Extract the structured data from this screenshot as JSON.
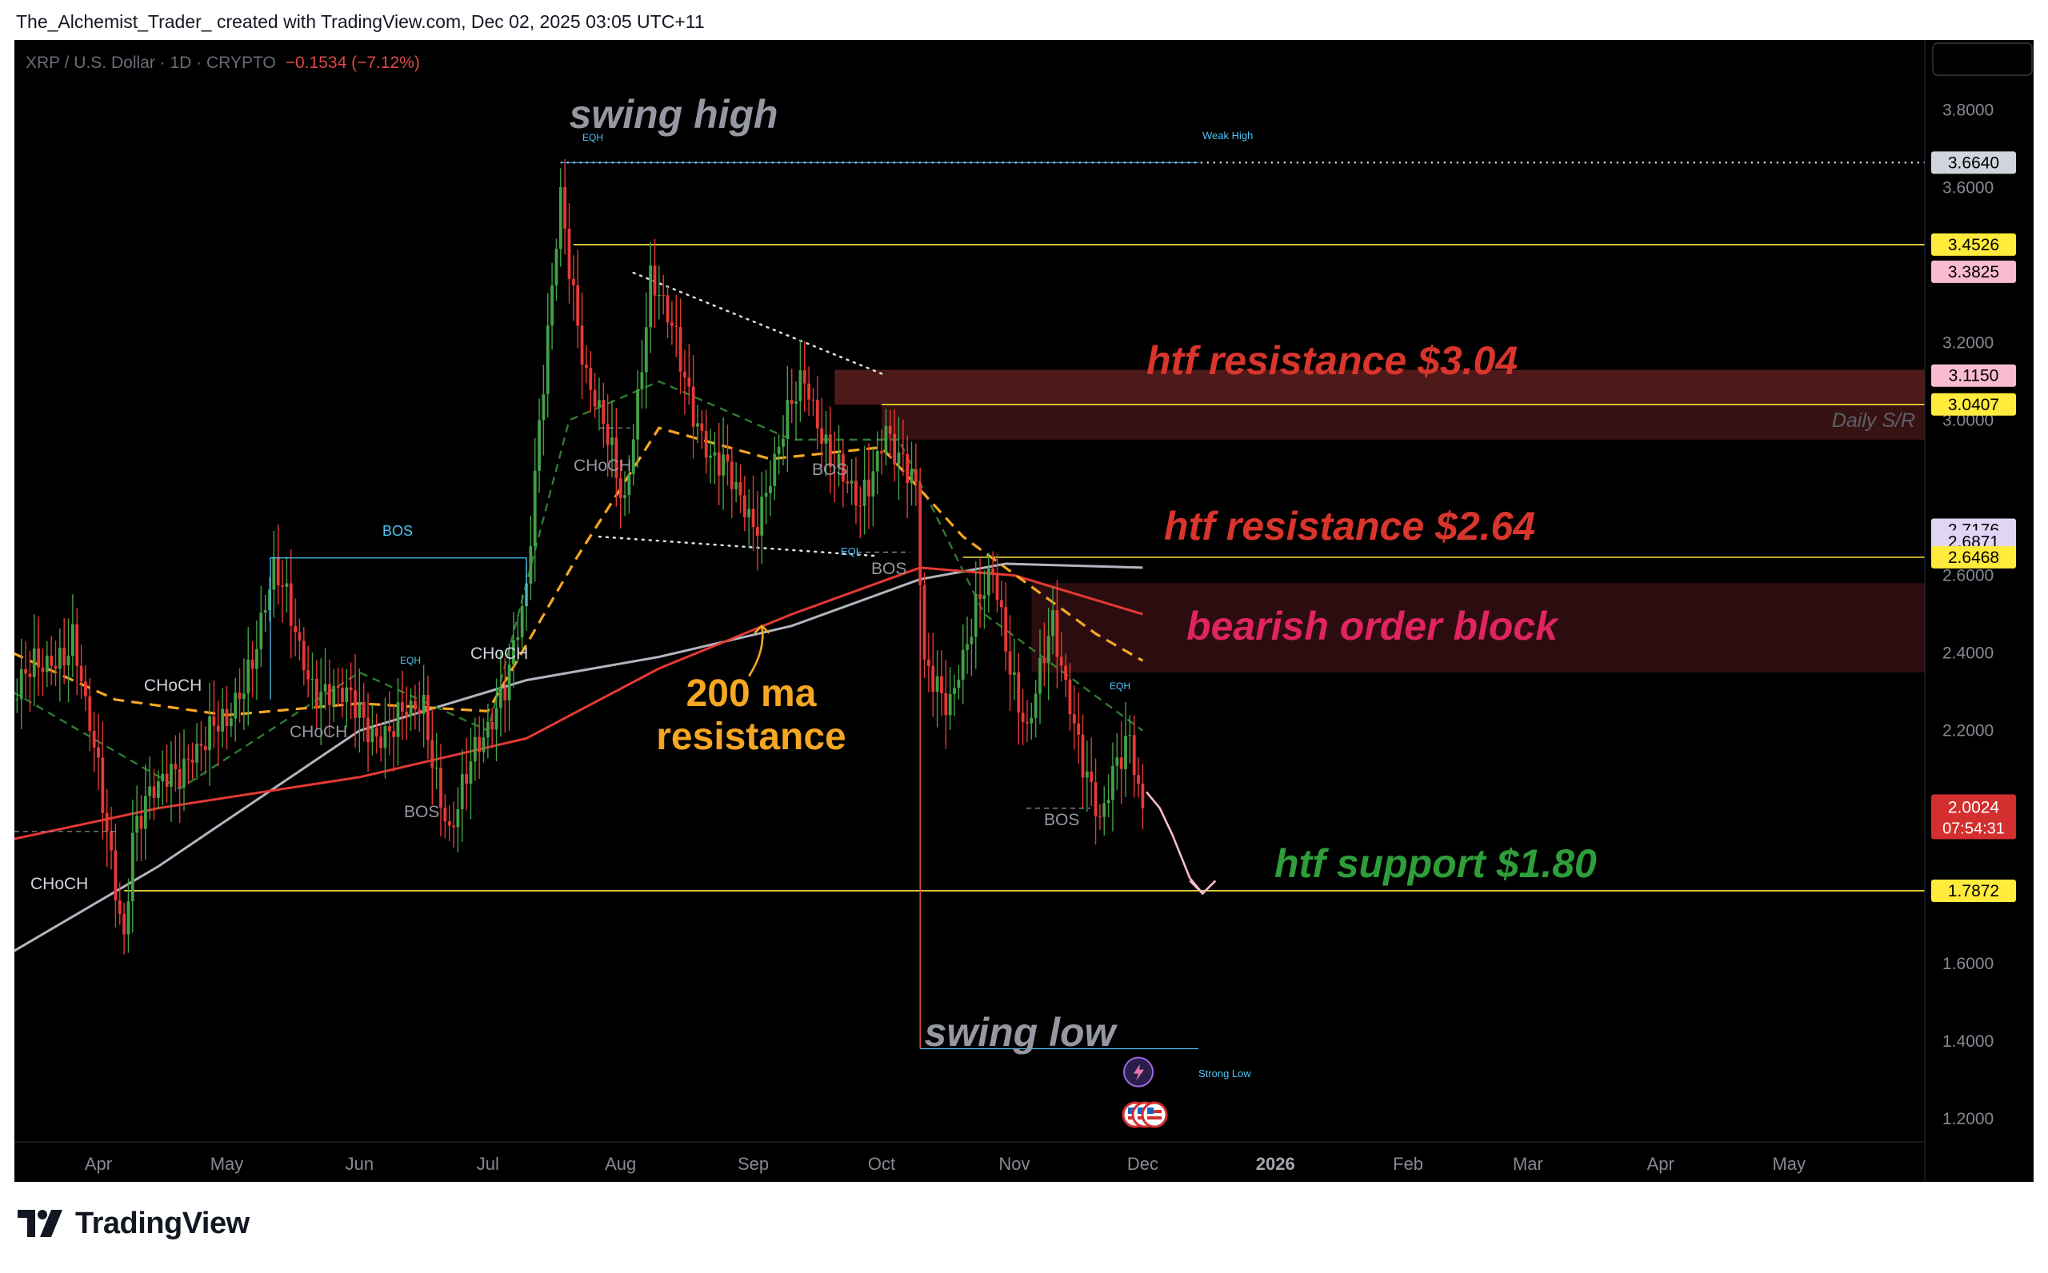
{
  "attribution": "The_Alchemist_Trader_ created with TradingView.com, Dec 02, 2025 03:05 UTC+11",
  "brand": "TradingView",
  "colors": {
    "up": "#26a69a",
    "up_bright": "#4caf50",
    "down": "#ef5350",
    "ma200": "#e53935",
    "ma_gray": "#b2b5be",
    "ma_orange": "#f5a623",
    "level_yellow": "#ffeb3b",
    "resistance_text": "#d8352c",
    "ob_text": "#e0245e",
    "support_text": "#2e9e3a",
    "annot_gray": "#9598a1"
  },
  "chart_data": {
    "type": "candlestick",
    "header": {
      "symbol": "XRP / U.S. Dollar · 1D · CRYPTO",
      "change": "−0.1534 (−7.12%)"
    },
    "currency": "USD",
    "x_ticks": [
      "Apr",
      "May",
      "Jun",
      "Jul",
      "Aug",
      "Sep",
      "Oct",
      "Nov",
      "Dec",
      "2026",
      "Feb",
      "Mar",
      "Apr",
      "May"
    ],
    "y_ticks": [
      "3.8000",
      "3.6000",
      "3.2000",
      "3.0000",
      "2.6000",
      "2.4000",
      "2.2000",
      "1.6000",
      "1.4000",
      "1.2000"
    ],
    "ylim": [
      1.14,
      3.98
    ],
    "price_labels": [
      {
        "value": 3.664,
        "text": "3.6640",
        "bg": "#d1d4dc",
        "fg": "#000000"
      },
      {
        "value": 3.4526,
        "text": "3.4526",
        "bg": "#ffeb3b",
        "fg": "#000000"
      },
      {
        "value": 3.3825,
        "text": "3.3825",
        "bg": "#f8bbd0",
        "fg": "#000000"
      },
      {
        "value": 3.115,
        "text": "3.1150",
        "bg": "#f8bbd0",
        "fg": "#000000"
      },
      {
        "value": 3.0407,
        "text": "3.0407",
        "bg": "#ffeb3b",
        "fg": "#000000"
      },
      {
        "value": 2.7176,
        "text": "2.7176",
        "bg": "#e1d5f5",
        "fg": "#000000"
      },
      {
        "value": 2.6871,
        "text": "2.6871",
        "bg": "#e1d5f5",
        "fg": "#000000"
      },
      {
        "value": 2.6468,
        "text": "2.6468",
        "bg": "#ffeb3b",
        "fg": "#000000"
      },
      {
        "value": 1.7872,
        "text": "1.7872",
        "bg": "#ffeb3b",
        "fg": "#000000"
      }
    ],
    "current_price": {
      "value": 2.0024,
      "text": "2.0024",
      "countdown": "07:54:31"
    },
    "levels": [
      {
        "value": 3.4526,
        "x_from": "2025-07-21"
      },
      {
        "value": 3.0407,
        "x_from": "2025-10-01"
      },
      {
        "value": 2.6468,
        "x_from": "2025-10-20"
      },
      {
        "value": 1.7872,
        "x_from": "2025-04-07"
      }
    ],
    "zones": [
      {
        "from": 3.04,
        "to": 3.13,
        "x_from": "2025-09-20",
        "name": "htf resistance"
      },
      {
        "from": 2.95,
        "to": 3.04,
        "x_from": "2025-10-01",
        "name": "daily s/r"
      },
      {
        "from": 2.35,
        "to": 2.58,
        "x_from": "2025-11-05",
        "name": "bearish order block"
      }
    ],
    "annotations": {
      "swing_high": "swing high",
      "swing_low": "swing low",
      "htf_res_1": "htf resistance $3.04",
      "htf_res_2": "htf resistance $2.64",
      "bearish_ob": "bearish order block",
      "ma_resistance_1": "200 ma",
      "ma_resistance_2": "resistance",
      "htf_support": "htf support $1.80",
      "daily_sr": "Daily S/R",
      "weak_high": "Weak High",
      "strong_low": "Strong Low",
      "eqh": "EQH",
      "eql": "EQL",
      "bos": "BOS",
      "choch": "CHoCH"
    },
    "swing_high": {
      "value": 3.664,
      "x": "2025-07-18"
    },
    "swing_low": {
      "value": 1.38,
      "x": "2025-10-10"
    },
    "anchors": [
      {
        "date": "2025-03-12",
        "price": 2.28
      },
      {
        "date": "2025-03-26",
        "price": 2.45
      },
      {
        "date": "2025-04-07",
        "price": 1.68
      },
      {
        "date": "2025-04-09",
        "price": 1.95
      },
      {
        "date": "2025-04-22",
        "price": 2.15
      },
      {
        "date": "2025-05-01",
        "price": 2.2
      },
      {
        "date": "2025-05-12",
        "price": 2.6
      },
      {
        "date": "2025-05-20",
        "price": 2.35
      },
      {
        "date": "2025-06-05",
        "price": 2.2
      },
      {
        "date": "2025-06-16",
        "price": 2.25
      },
      {
        "date": "2025-06-22",
        "price": 1.95
      },
      {
        "date": "2025-07-01",
        "price": 2.2
      },
      {
        "date": "2025-07-10",
        "price": 2.55
      },
      {
        "date": "2025-07-18",
        "price": 3.6
      },
      {
        "date": "2025-07-24",
        "price": 3.1
      },
      {
        "date": "2025-08-02",
        "price": 2.8
      },
      {
        "date": "2025-08-08",
        "price": 3.35
      },
      {
        "date": "2025-08-14",
        "price": 3.2
      },
      {
        "date": "2025-08-22",
        "price": 2.9
      },
      {
        "date": "2025-09-01",
        "price": 2.75
      },
      {
        "date": "2025-09-13",
        "price": 3.1
      },
      {
        "date": "2025-09-22",
        "price": 2.85
      },
      {
        "date": "2025-09-26",
        "price": 2.75
      },
      {
        "date": "2025-10-02",
        "price": 3.0
      },
      {
        "date": "2025-10-09",
        "price": 2.8
      },
      {
        "date": "2025-10-11",
        "price": 2.35
      },
      {
        "date": "2025-10-17",
        "price": 2.3
      },
      {
        "date": "2025-10-27",
        "price": 2.6
      },
      {
        "date": "2025-11-04",
        "price": 2.2
      },
      {
        "date": "2025-11-10",
        "price": 2.45
      },
      {
        "date": "2025-11-16",
        "price": 2.2
      },
      {
        "date": "2025-11-21",
        "price": 1.95
      },
      {
        "date": "2025-11-28",
        "price": 2.2
      },
      {
        "date": "2025-12-01",
        "price": 2.0
      }
    ],
    "ma200": [
      {
        "date": "2025-03-12",
        "price": 1.92
      },
      {
        "date": "2025-04-15",
        "price": 2.0
      },
      {
        "date": "2025-06-01",
        "price": 2.08
      },
      {
        "date": "2025-07-10",
        "price": 2.18
      },
      {
        "date": "2025-08-10",
        "price": 2.36
      },
      {
        "date": "2025-09-10",
        "price": 2.5
      },
      {
        "date": "2025-10-10",
        "price": 2.62
      },
      {
        "date": "2025-11-01",
        "price": 2.6
      },
      {
        "date": "2025-12-01",
        "price": 2.5
      }
    ],
    "ma_gray": [
      {
        "date": "2025-03-12",
        "price": 1.63
      },
      {
        "date": "2025-04-15",
        "price": 1.85
      },
      {
        "date": "2025-06-01",
        "price": 2.2
      },
      {
        "date": "2025-07-10",
        "price": 2.33
      },
      {
        "date": "2025-08-10",
        "price": 2.39
      },
      {
        "date": "2025-09-10",
        "price": 2.47
      },
      {
        "date": "2025-10-10",
        "price": 2.59
      },
      {
        "date": "2025-10-30",
        "price": 2.63
      },
      {
        "date": "2025-12-01",
        "price": 2.62
      }
    ],
    "ma_orange": [
      {
        "date": "2025-03-12",
        "price": 2.4
      },
      {
        "date": "2025-04-05",
        "price": 2.28
      },
      {
        "date": "2025-05-01",
        "price": 2.24
      },
      {
        "date": "2025-06-01",
        "price": 2.27
      },
      {
        "date": "2025-07-01",
        "price": 2.25
      },
      {
        "date": "2025-07-22",
        "price": 2.65
      },
      {
        "date": "2025-08-10",
        "price": 2.98
      },
      {
        "date": "2025-09-05",
        "price": 2.9
      },
      {
        "date": "2025-10-01",
        "price": 2.93
      },
      {
        "date": "2025-10-20",
        "price": 2.7
      },
      {
        "date": "2025-11-20",
        "price": 2.45
      },
      {
        "date": "2025-12-01",
        "price": 2.38
      }
    ],
    "ma_green": [
      {
        "date": "2025-03-12",
        "price": 2.3
      },
      {
        "date": "2025-04-20",
        "price": 2.05
      },
      {
        "date": "2025-06-01",
        "price": 2.35
      },
      {
        "date": "2025-07-01",
        "price": 2.2
      },
      {
        "date": "2025-07-20",
        "price": 3.0
      },
      {
        "date": "2025-08-10",
        "price": 3.1
      },
      {
        "date": "2025-09-10",
        "price": 2.95
      },
      {
        "date": "2025-10-05",
        "price": 2.95
      },
      {
        "date": "2025-10-25",
        "price": 2.5
      },
      {
        "date": "2025-12-01",
        "price": 2.2
      }
    ],
    "trendline_upper": [
      {
        "date": "2025-08-04",
        "price": 3.38
      },
      {
        "date": "2025-10-01",
        "price": 3.12
      }
    ],
    "trendline_lower": [
      {
        "date": "2025-07-27",
        "price": 2.7
      },
      {
        "date": "2025-09-30",
        "price": 2.65
      }
    ],
    "projection": [
      {
        "date": "2025-12-02",
        "price": 2.04
      },
      {
        "date": "2025-12-05",
        "price": 2.0
      },
      {
        "date": "2025-12-08",
        "price": 1.93
      },
      {
        "date": "2025-12-12",
        "price": 1.82
      },
      {
        "date": "2025-12-15",
        "price": 1.78
      }
    ]
  }
}
